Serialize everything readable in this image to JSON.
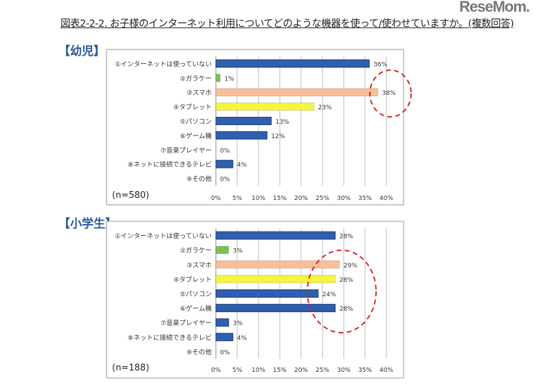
{
  "title": "図表2-2-2. お子様のインターネット利用についてどのような機器を使って/使わせていますか。(複数回答)",
  "logo": "ReseMom",
  "chart_data": [
    {
      "type": "bar",
      "orientation": "horizontal",
      "section_label": "【幼児】",
      "n_label": "(n=580)",
      "categories": [
        "①インターネットは使っていない",
        "②ガラケー",
        "③スマホ",
        "④タブレット",
        "⑤パソコン",
        "⑥ゲーム機",
        "⑦音楽プレイヤー",
        "⑧ネットに接続できるテレビ",
        "⑨その他"
      ],
      "values": [
        36,
        1,
        38,
        23,
        13,
        12,
        0,
        4,
        0
      ],
      "data_labels": [
        "36%",
        "1%",
        "38%",
        "23%",
        "13%",
        "12%",
        "0%",
        "4%",
        "0%"
      ],
      "colors": [
        "#2f5fae",
        "#7fbf4f",
        "#f9be96",
        "#f5f53a",
        "#2f5fae",
        "#2f5fae",
        "#2f5fae",
        "#2f5fae",
        "#2f5fae"
      ],
      "xlim": [
        0,
        40
      ],
      "ticks": [
        "0%",
        "5%",
        "10%",
        "15%",
        "20%",
        "25%",
        "30%",
        "35%",
        "40%"
      ],
      "grid": true,
      "highlight": "③スマホ"
    },
    {
      "type": "bar",
      "orientation": "horizontal",
      "section_label": "【小学生】",
      "n_label": "(n=188)",
      "categories": [
        "①インターネットは使っていない",
        "②ガラケー",
        "③スマホ",
        "④タブレット",
        "⑤パソコン",
        "⑥ゲーム機",
        "⑦音楽プレイヤー",
        "⑧ネットに接続できるテレビ",
        "⑨その他"
      ],
      "values": [
        28,
        3,
        29,
        28,
        24,
        28,
        3,
        4,
        0
      ],
      "data_labels": [
        "28%",
        "3%",
        "29%",
        "28%",
        "24%",
        "28%",
        "3%",
        "4%",
        "0%"
      ],
      "colors": [
        "#2f5fae",
        "#7fbf4f",
        "#f9be96",
        "#f5f53a",
        "#2f5fae",
        "#2f5fae",
        "#2f5fae",
        "#2f5fae",
        "#2f5fae"
      ],
      "xlim": [
        0,
        40
      ],
      "ticks": [
        "0%",
        "5%",
        "10%",
        "15%",
        "20%",
        "25%",
        "30%",
        "35%",
        "40%"
      ],
      "grid": true,
      "highlight": "③スマホ〜⑥ゲーム機"
    }
  ]
}
